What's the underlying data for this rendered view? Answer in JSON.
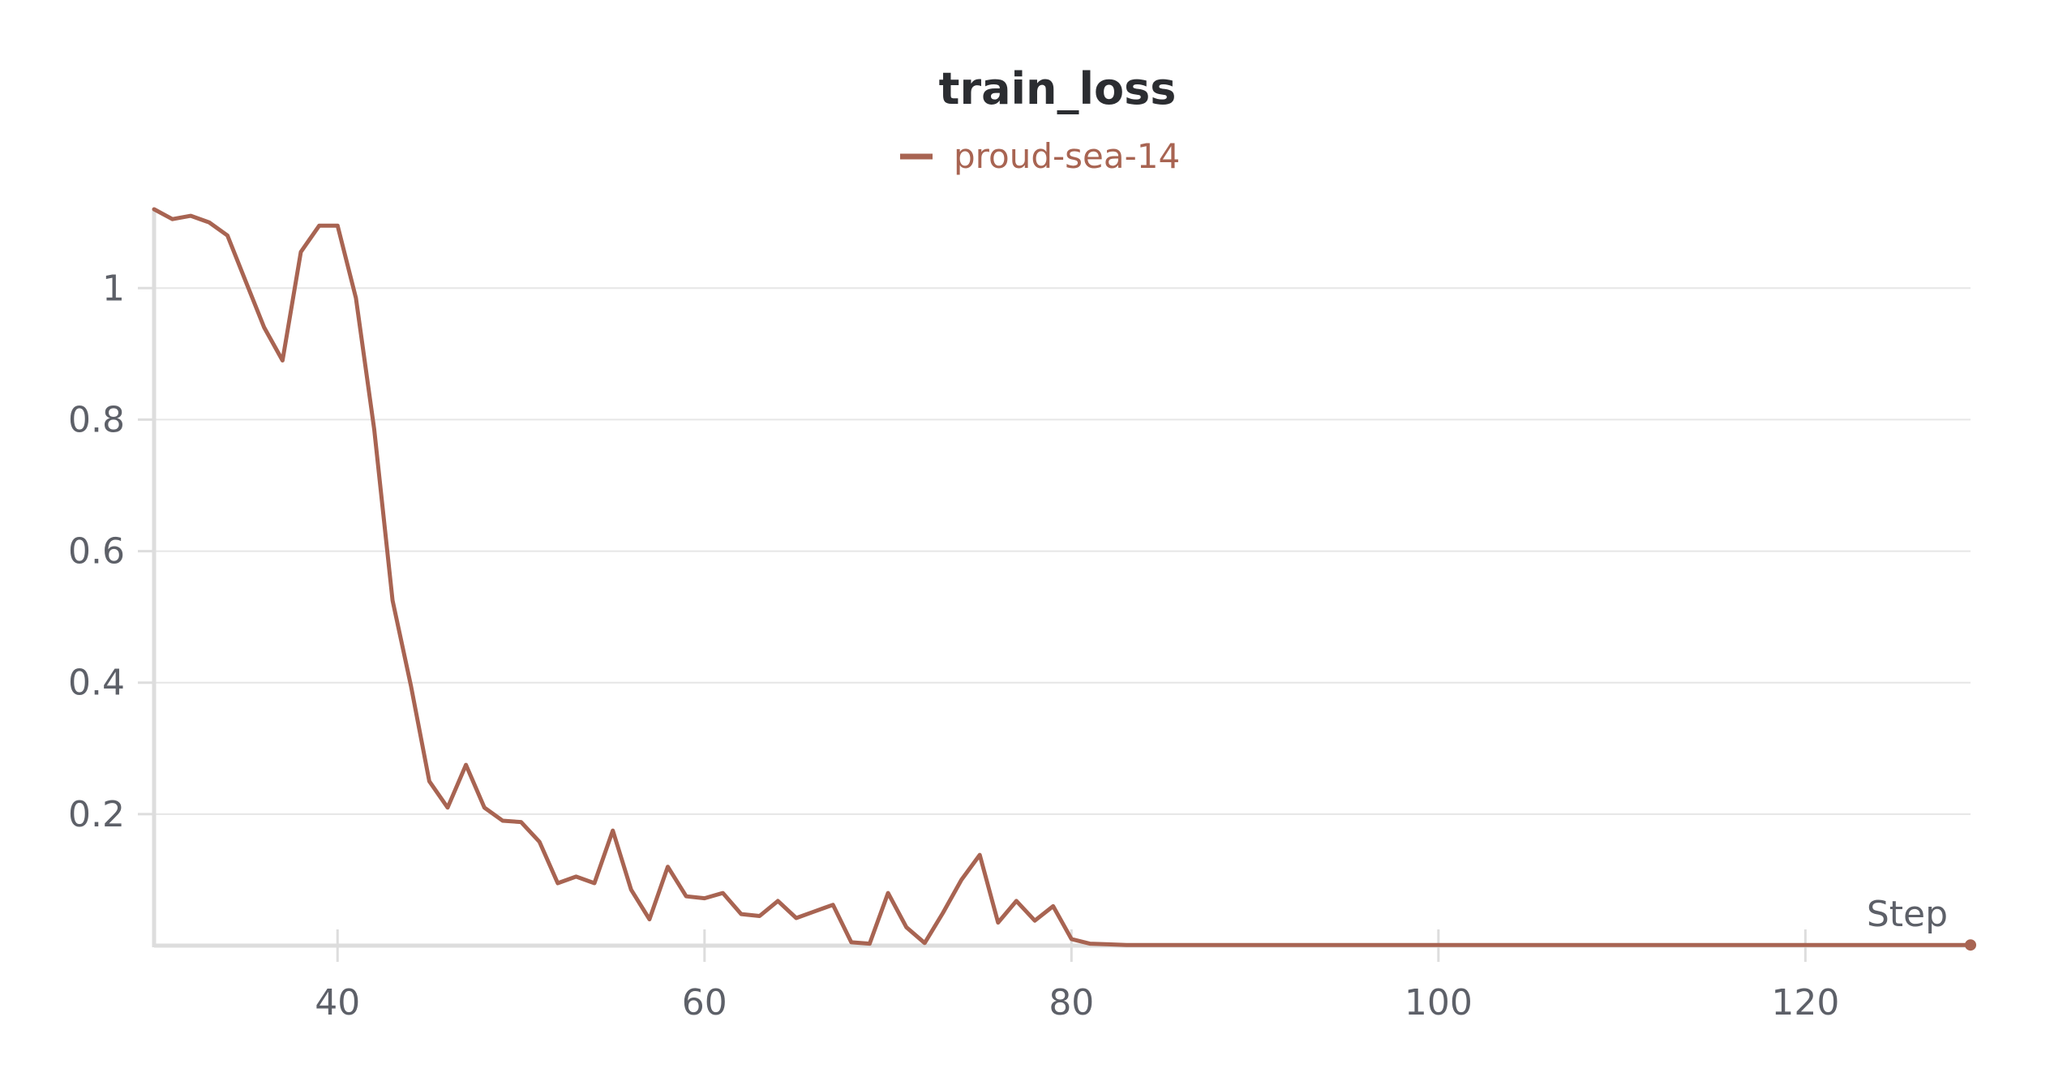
{
  "colors": {
    "series": "#a86452",
    "grid": "#e6e6e6",
    "axis": "#dddddd",
    "text": "#5d6068",
    "title": "#2b2d31"
  },
  "chart_data": {
    "type": "line",
    "title": "train_loss",
    "xlabel": "Step",
    "ylabel": "",
    "xlim": [
      30,
      129
    ],
    "ylim": [
      0,
      1.12
    ],
    "xticks": [
      40,
      60,
      80,
      100,
      120
    ],
    "yticks": [
      0.2,
      0.4,
      0.6,
      0.8,
      1
    ],
    "xtick_labels": [
      "40",
      "60",
      "80",
      "100",
      "120"
    ],
    "ytick_labels": [
      "0.2",
      "0.4",
      "0.6",
      "0.8",
      "1"
    ],
    "grid": true,
    "legend_position": "top-center",
    "series": [
      {
        "name": "proud-sea-14",
        "color": "#a86452",
        "x": [
          30,
          31,
          32,
          33,
          34,
          35,
          36,
          37,
          38,
          39,
          40,
          41,
          42,
          43,
          44,
          45,
          46,
          47,
          48,
          49,
          50,
          51,
          52,
          53,
          54,
          55,
          56,
          57,
          58,
          59,
          60,
          61,
          62,
          63,
          64,
          65,
          66,
          67,
          68,
          69,
          70,
          71,
          72,
          73,
          74,
          75,
          76,
          77,
          78,
          79,
          80,
          81,
          82,
          83,
          84,
          85,
          86,
          87,
          88,
          89,
          90,
          91,
          92,
          93,
          94,
          95,
          96,
          97,
          98,
          99,
          100,
          101,
          102,
          103,
          104,
          105,
          106,
          107,
          108,
          109,
          110,
          111,
          112,
          113,
          114,
          115,
          116,
          117,
          118,
          119,
          120,
          121,
          122,
          123,
          124,
          125,
          126,
          127,
          128,
          129
        ],
        "y": [
          1.12,
          1.105,
          1.11,
          1.1,
          1.08,
          1.01,
          0.94,
          0.89,
          1.055,
          1.095,
          1.095,
          0.985,
          0.785,
          0.525,
          0.395,
          0.25,
          0.21,
          0.275,
          0.21,
          0.19,
          0.188,
          0.158,
          0.095,
          0.105,
          0.095,
          0.175,
          0.085,
          0.04,
          0.12,
          0.075,
          0.072,
          0.08,
          0.048,
          0.045,
          0.068,
          0.042,
          0.052,
          0.062,
          0.005,
          0.003,
          0.08,
          0.028,
          0.004,
          0.05,
          0.1,
          0.138,
          0.035,
          0.068,
          0.038,
          0.06,
          0.01,
          0.003,
          0.002,
          0.001,
          0.001,
          0.001,
          0.001,
          0.001,
          0.001,
          0.001,
          0.001,
          0.001,
          0.001,
          0.001,
          0.001,
          0.001,
          0.001,
          0.001,
          0.001,
          0.001,
          0.001,
          0.001,
          0.001,
          0.001,
          0.001,
          0.001,
          0.001,
          0.001,
          0.001,
          0.001,
          0.001,
          0.001,
          0.001,
          0.001,
          0.001,
          0.001,
          0.001,
          0.001,
          0.001,
          0.001,
          0.001,
          0.001,
          0.001,
          0.001,
          0.001,
          0.001,
          0.001,
          0.001,
          0.001,
          0.001
        ]
      }
    ]
  }
}
